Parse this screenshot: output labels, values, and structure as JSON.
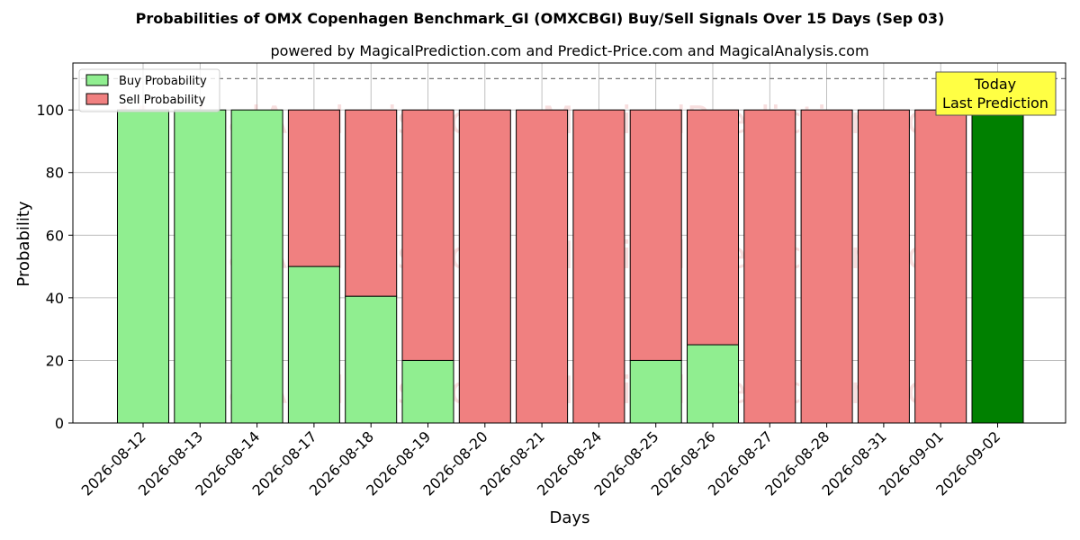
{
  "chart_data": {
    "type": "bar",
    "stacked": true,
    "title": "Probabilities of OMX Copenhagen Benchmark_GI (OMXCBGI) Buy/Sell Signals Over 15 Days (Sep 03)",
    "subtitle": "powered by MagicalPrediction.com and Predict-Price.com and MagicalAnalysis.com",
    "xlabel": "Days",
    "ylabel": "Probability",
    "ylim": [
      0,
      115
    ],
    "yticks": [
      0,
      20,
      40,
      60,
      80,
      100
    ],
    "grid": true,
    "legend_placement": "top-left",
    "reference_line": 110,
    "categories": [
      "2026-08-12",
      "2026-08-13",
      "2026-08-14",
      "2026-08-17",
      "2026-08-18",
      "2026-08-19",
      "2026-08-20",
      "2026-08-21",
      "2026-08-24",
      "2026-08-25",
      "2026-08-26",
      "2026-08-27",
      "2026-08-28",
      "2026-08-31",
      "2026-09-01",
      "2026-09-02"
    ],
    "series": [
      {
        "name": "Buy Probability",
        "color": "#90ee90",
        "values": [
          100,
          100,
          100,
          50,
          40.5,
          20,
          0,
          0,
          0,
          20,
          25,
          0,
          0,
          0,
          0,
          100
        ]
      },
      {
        "name": "Sell Probability",
        "color": "#f08080",
        "values": [
          0,
          0,
          0,
          50,
          59.5,
          80,
          100,
          100,
          100,
          80,
          75,
          100,
          100,
          100,
          100,
          0
        ]
      }
    ],
    "highlight": {
      "index": 15,
      "color": "#008000"
    },
    "annotation": {
      "line1": "Today",
      "line2": "Last Prediction",
      "background": "#ffff44"
    },
    "watermarks": [
      "MagicalAnalysis.com",
      "MagicalPrediction.com"
    ]
  }
}
